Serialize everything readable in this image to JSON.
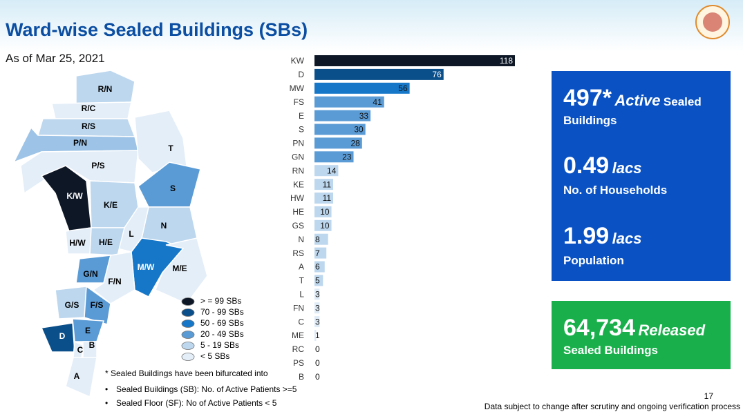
{
  "header": {
    "title": "Ward-wise Sealed Buildings (SBs)",
    "date": "As of Mar 25, 2021"
  },
  "map": {
    "wards": [
      "R/N",
      "R/C",
      "R/S",
      "P/N",
      "P/S",
      "T",
      "K/W",
      "K/E",
      "S",
      "N",
      "L",
      "H/W",
      "H/E",
      "M/W",
      "M/E",
      "G/N",
      "F/N",
      "G/S",
      "F/S",
      "E",
      "D",
      "C",
      "B",
      "A"
    ],
    "legend": [
      {
        "label": "> = 99 SBs",
        "color": "#0d1726"
      },
      {
        "label": "70 - 99 SBs",
        "color": "#0b4f8a"
      },
      {
        "label": "50 - 69 SBs",
        "color": "#1677c8"
      },
      {
        "label": "20 - 49 SBs",
        "color": "#5b9bd5"
      },
      {
        "label": "5 - 19 SBs",
        "color": "#bdd7ee"
      },
      {
        "label": "< 5 SBs",
        "color": "#e4eef8"
      }
    ]
  },
  "notes": {
    "heading": "* Sealed Buildings have been bifurcated into",
    "items": [
      "Sealed Buildings (SB): No. of Active Patients >=5",
      "Sealed Floor (SF): No of Active Patients < 5"
    ]
  },
  "chart_data": {
    "type": "bar",
    "orientation": "horizontal",
    "categories": [
      "KW",
      "D",
      "MW",
      "FS",
      "E",
      "S",
      "PN",
      "GN",
      "RN",
      "KE",
      "HW",
      "HE",
      "GS",
      "N",
      "RS",
      "A",
      "T",
      "L",
      "FN",
      "C",
      "ME",
      "RC",
      "PS",
      "B"
    ],
    "values": [
      118,
      76,
      56,
      41,
      33,
      30,
      28,
      23,
      14,
      11,
      11,
      10,
      10,
      8,
      7,
      6,
      5,
      3,
      3,
      3,
      1,
      0,
      0,
      0
    ],
    "colors": [
      "#0d1726",
      "#0b4f8a",
      "#1677c8",
      "#5b9bd5",
      "#5b9bd5",
      "#5b9bd5",
      "#5b9bd5",
      "#5b9bd5",
      "#bdd7ee",
      "#bdd7ee",
      "#bdd7ee",
      "#bdd7ee",
      "#bdd7ee",
      "#bdd7ee",
      "#bdd7ee",
      "#bdd7ee",
      "#bdd7ee",
      "#deebf7",
      "#deebf7",
      "#deebf7",
      "#deebf7",
      "#deebf7",
      "#deebf7",
      "#deebf7"
    ]
  },
  "stats": [
    {
      "value": "497*",
      "emphasis": "Active",
      "rest": "Sealed",
      "label": "Buildings"
    },
    {
      "value": "0.49",
      "emphasis": "lacs",
      "label": "No. of Households"
    },
    {
      "value": "1.99",
      "emphasis": "lacs",
      "label": "Population"
    },
    {
      "value": "64,734",
      "emphasis": "Released",
      "label": "Sealed Buildings"
    }
  ],
  "footer": {
    "page": "17",
    "disclaimer": "Data subject to change after scrutiny and ongoing verification process"
  }
}
